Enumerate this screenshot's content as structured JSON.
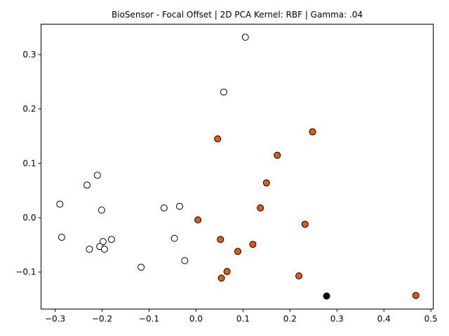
{
  "chart_data": {
    "type": "scatter",
    "title": "BioSensor - Focal Offset | 2D PCA Kernel: RBF | Gamma: .04",
    "xlabel": "",
    "ylabel": "",
    "xlim": [
      -0.33,
      0.505
    ],
    "ylim": [
      -0.168,
      0.356
    ],
    "xticks": [
      -0.3,
      -0.2,
      -0.1,
      0.0,
      0.1,
      0.2,
      0.3,
      0.4,
      0.5
    ],
    "xtick_labels": [
      "−0.3",
      "−0.2",
      "−0.1",
      "0.0",
      "0.1",
      "0.2",
      "0.3",
      "0.4",
      "0.5"
    ],
    "yticks": [
      -0.1,
      0.0,
      0.1,
      0.2,
      0.3
    ],
    "ytick_labels": [
      "−0.1",
      "0.0",
      "0.1",
      "0.2",
      "0.3"
    ],
    "grid": false,
    "series": [
      {
        "color": "#ffffff",
        "points": [
          [
            0.105,
            0.332
          ],
          [
            0.059,
            0.231
          ],
          [
            -0.21,
            0.078
          ],
          [
            -0.232,
            0.06
          ],
          [
            -0.29,
            0.025
          ],
          [
            -0.201,
            0.014
          ],
          [
            -0.068,
            0.018
          ],
          [
            -0.035,
            0.021
          ],
          [
            -0.286,
            -0.036
          ],
          [
            -0.046,
            -0.038
          ],
          [
            -0.198,
            -0.044
          ],
          [
            -0.18,
            -0.04
          ],
          [
            -0.205,
            -0.053
          ],
          [
            -0.195,
            -0.058
          ],
          [
            -0.227,
            -0.058
          ],
          [
            -0.024,
            -0.079
          ],
          [
            -0.117,
            -0.091
          ]
        ]
      },
      {
        "color": "#e8590c",
        "points": [
          [
            0.248,
            0.158
          ],
          [
            0.046,
            0.145
          ],
          [
            0.173,
            0.115
          ],
          [
            0.15,
            0.064
          ],
          [
            0.137,
            0.018
          ],
          [
            0.004,
            -0.004
          ],
          [
            0.232,
            -0.012
          ],
          [
            0.052,
            -0.04
          ],
          [
            0.121,
            -0.049
          ],
          [
            0.089,
            -0.062
          ],
          [
            0.066,
            -0.099
          ],
          [
            0.054,
            -0.111
          ],
          [
            0.219,
            -0.107
          ],
          [
            0.468,
            -0.143
          ]
        ]
      },
      {
        "color": "#000000",
        "points": [
          [
            0.278,
            -0.144
          ]
        ]
      }
    ]
  }
}
